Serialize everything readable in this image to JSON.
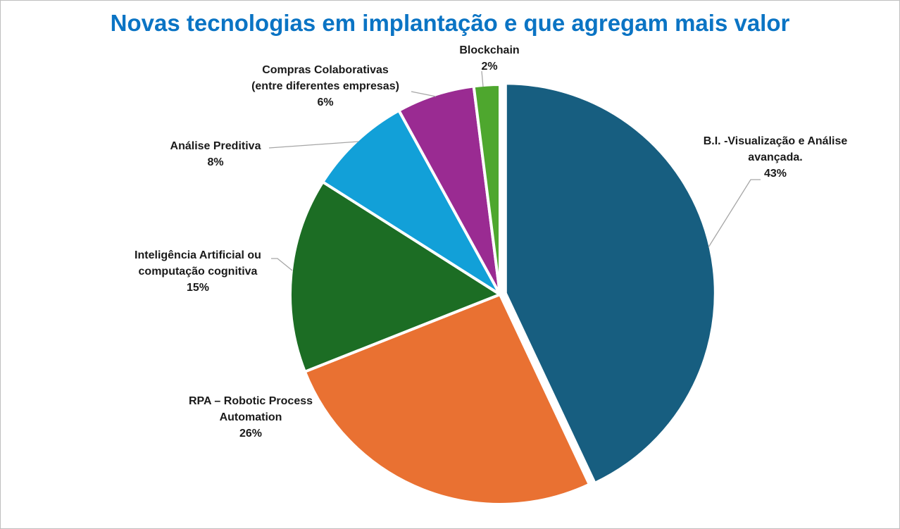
{
  "chart_data": {
    "type": "pie",
    "title": "Novas tecnologias em implantação e que agregam mais valor",
    "start_angle_deg": 0,
    "direction": "clockwise",
    "exploded": true,
    "slices": [
      {
        "label_lines": [
          "B.I. -Visualização e Análise",
          "avançada."
        ],
        "value": 43,
        "value_label": "43%",
        "color": "#175e80"
      },
      {
        "label_lines": [
          "RPA – Robotic Process",
          "Automation"
        ],
        "value": 26,
        "value_label": "26%",
        "color": "#e97132"
      },
      {
        "label_lines": [
          "Inteligência Artificial ou",
          "computação cognitiva"
        ],
        "value": 15,
        "value_label": "15%",
        "color": "#1c6d24"
      },
      {
        "label_lines": [
          "Análise Preditiva"
        ],
        "value": 8,
        "value_label": "8%",
        "color": "#12a0d8"
      },
      {
        "label_lines": [
          "Compras Colaborativas",
          "(entre diferentes empresas)"
        ],
        "value": 6,
        "value_label": "6%",
        "color": "#9a2b92"
      },
      {
        "label_lines": [
          "Blockchain"
        ],
        "value": 2,
        "value_label": "2%",
        "color": "#4ea72e"
      }
    ]
  }
}
